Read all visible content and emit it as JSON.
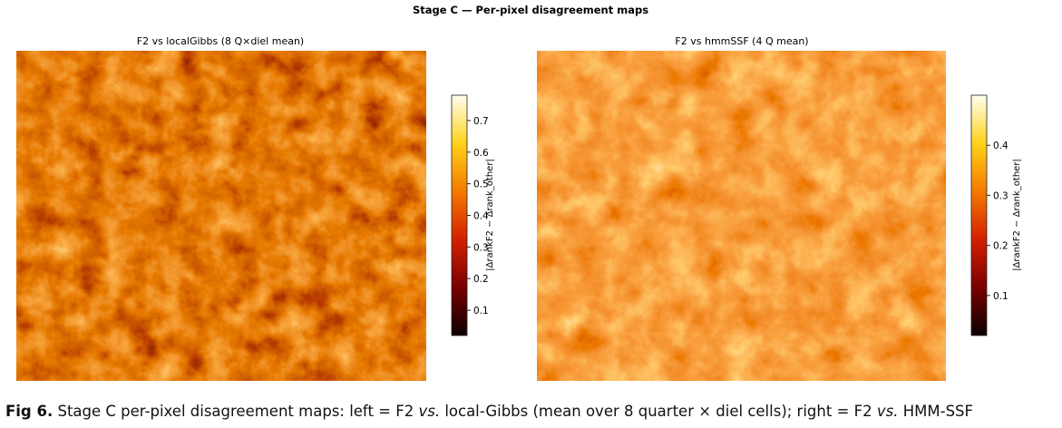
{
  "figure": {
    "title": "Stage C — Per-pixel disagreement maps",
    "panels": [
      {
        "title": "F2 vs localGibbs (8 Q×diel mean)",
        "colorbar": {
          "label": "|ΔrankF2 − Δrank_other|",
          "lim": [
            0.02,
            0.78
          ],
          "ticks": [
            0.1,
            0.2,
            0.3,
            0.4,
            0.5,
            0.6,
            0.7
          ]
        }
      },
      {
        "title": "F2 vs hmmSSF (4 Q mean)",
        "colorbar": {
          "label": "|ΔrankF2 − Δrank_other|",
          "lim": [
            0.02,
            0.5
          ],
          "ticks": [
            0.1,
            0.2,
            0.3,
            0.4
          ]
        }
      }
    ]
  },
  "caption": {
    "label": "Fig 6.",
    "segments": [
      {
        "text": " Stage C per-pixel disagreement maps: left = F2 ",
        "italic": false
      },
      {
        "text": "vs.",
        "italic": true
      },
      {
        "text": " local-Gibbs (mean over 8 quarter × diel cells); right = F2 ",
        "italic": false
      },
      {
        "text": "vs.",
        "italic": true
      },
      {
        "text": " HMM-SSF",
        "italic": false
      }
    ]
  }
}
